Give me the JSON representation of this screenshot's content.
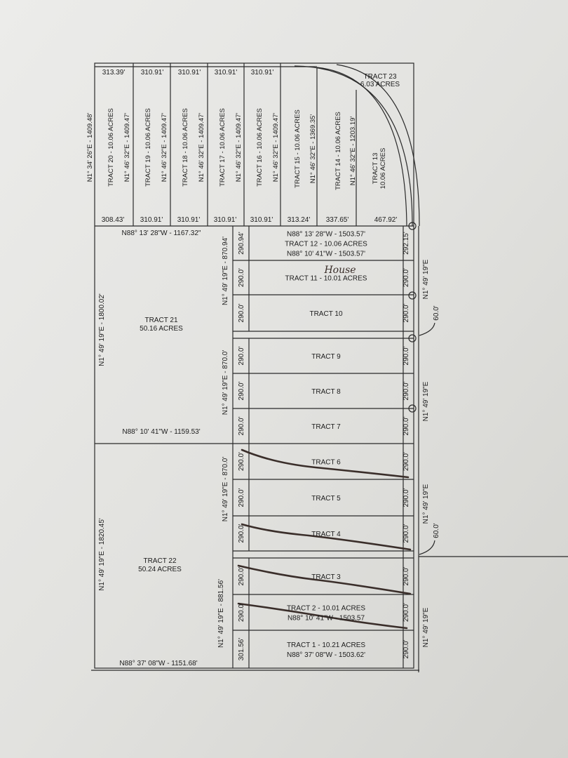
{
  "top_section": {
    "left_bearing": "N1° 34' 26\"E - 1409.48'",
    "top_lengths": [
      "313.39'",
      "310.91'",
      "310.91'",
      "310.91'",
      "310.91'"
    ],
    "bottom_lengths": [
      "308.43'",
      "310.91'",
      "310.91'",
      "310.91'",
      "310.91'",
      "313.24'",
      "337.65'",
      "467.92'"
    ],
    "tracts": [
      {
        "label": "TRACT 20 - 10.06 ACRES",
        "bearing": "N1° 46' 32\"E - 1409.47'"
      },
      {
        "label": "TRACT 19 - 10.06 ACRES",
        "bearing": "N1° 46' 32\"E - 1409.47'"
      },
      {
        "label": "TRACT 18 - 10.06 ACRES",
        "bearing": "N1° 46' 32\"E - 1409.47'"
      },
      {
        "label": "TRACT 17 - 10.06 ACRES",
        "bearing": "N1° 46' 32\"E - 1409.47'"
      },
      {
        "label": "TRACT 16 - 10.06 ACRES",
        "bearing": "N1° 46' 32\"E - 1409.47'"
      },
      {
        "label": "TRACT 15 - 10.06 ACRES",
        "bearing": "N1° 46' 32\"E - 1369.35'"
      },
      {
        "label": "TRACT 14 - 10.06 ACRES",
        "bearing": "N1° 46' 32\"E - 1203.19'"
      }
    ],
    "tract13": {
      "name": "TRACT 13",
      "acres": "10.06 ACRES"
    },
    "tract23": {
      "name": "TRACT 23",
      "acres": "6.03 ACRES"
    }
  },
  "tract21": {
    "name": "TRACT 21",
    "acres": "50.16 ACRES",
    "top_bearing": "N88° 13' 28\"W - 1167.32\"",
    "left_bearing": "N1° 49' 19\"E - 1800.02'",
    "right_bearing_1": "N1° 49' 19\"E - 870.94'",
    "right_bearing_2": "N1° 49' 19\"E - 870.0'"
  },
  "tract22": {
    "name": "TRACT 22",
    "acres": "50.24 ACRES",
    "top_bearing": "N88° 10' 41\"W - 1159.53'",
    "left_bearing": "N1° 49' 19\"E - 1820.45'",
    "right_bearing_1": "N1° 49' 19\"E - 870.0'",
    "right_bearing_2": "N1° 49' 19\"E - 881.56'",
    "bottom_bearing": "N88° 37' 08\"W - 1151.68'"
  },
  "lower_tracts": [
    {
      "lines": [
        "N88° 13' 28\"W - 1503.57'",
        "TRACT 12 - 10.06 ACRES",
        "N88° 10' 41\"W - 1503.57'"
      ],
      "left": "290.94'",
      "right": "292.15'"
    },
    {
      "lines": [
        "TRACT 11 - 10.01 ACRES"
      ],
      "left": "290.0'",
      "right": "290.0'",
      "note": "House"
    },
    {
      "lines": [
        "TRACT 10"
      ],
      "left": "290.0'",
      "right": "290.0'"
    },
    {
      "lines": [
        "TRACT 9"
      ],
      "left": "290.0'",
      "right": "290.0'"
    },
    {
      "lines": [
        "TRACT 8"
      ],
      "left": "290.0'",
      "right": "290.0'"
    },
    {
      "lines": [
        "TRACT 7"
      ],
      "left": "290.0'",
      "right": "290.0'"
    },
    {
      "lines": [
        "TRACT 6"
      ],
      "left": "290.0'",
      "right": "290.0'"
    },
    {
      "lines": [
        "TRACT 5"
      ],
      "left": "290.0'",
      "right": "290.0'"
    },
    {
      "lines": [
        "TRACT 4"
      ],
      "left": "290.0'",
      "right": "290.0'"
    },
    {
      "lines": [
        "TRACT 3"
      ],
      "left": "290.0'",
      "right": "290.0'"
    },
    {
      "lines": [
        "TRACT 2 - 10.01 ACRES",
        "N88° 10' 41\"W - 1503.57"
      ],
      "left": "290.0'",
      "right": "290.0'"
    },
    {
      "lines": [
        "TRACT 1 - 10.21 ACRES",
        "N88° 37' 08\"W - 1503.62'"
      ],
      "left": "301.56'",
      "right": "290.0'"
    }
  ],
  "right_side": {
    "bearings": [
      "N1° 49' 19\"E",
      "N1° 49' 19\"E",
      "N1° 49' 19\"E",
      "N1° 49' 19\"E"
    ],
    "road_widths": [
      "60.0'",
      "60.0'"
    ]
  },
  "colors": {
    "paper": "#e4e4e1",
    "ink": "#1c1c1c",
    "handwriting": "#3a2e2a"
  }
}
